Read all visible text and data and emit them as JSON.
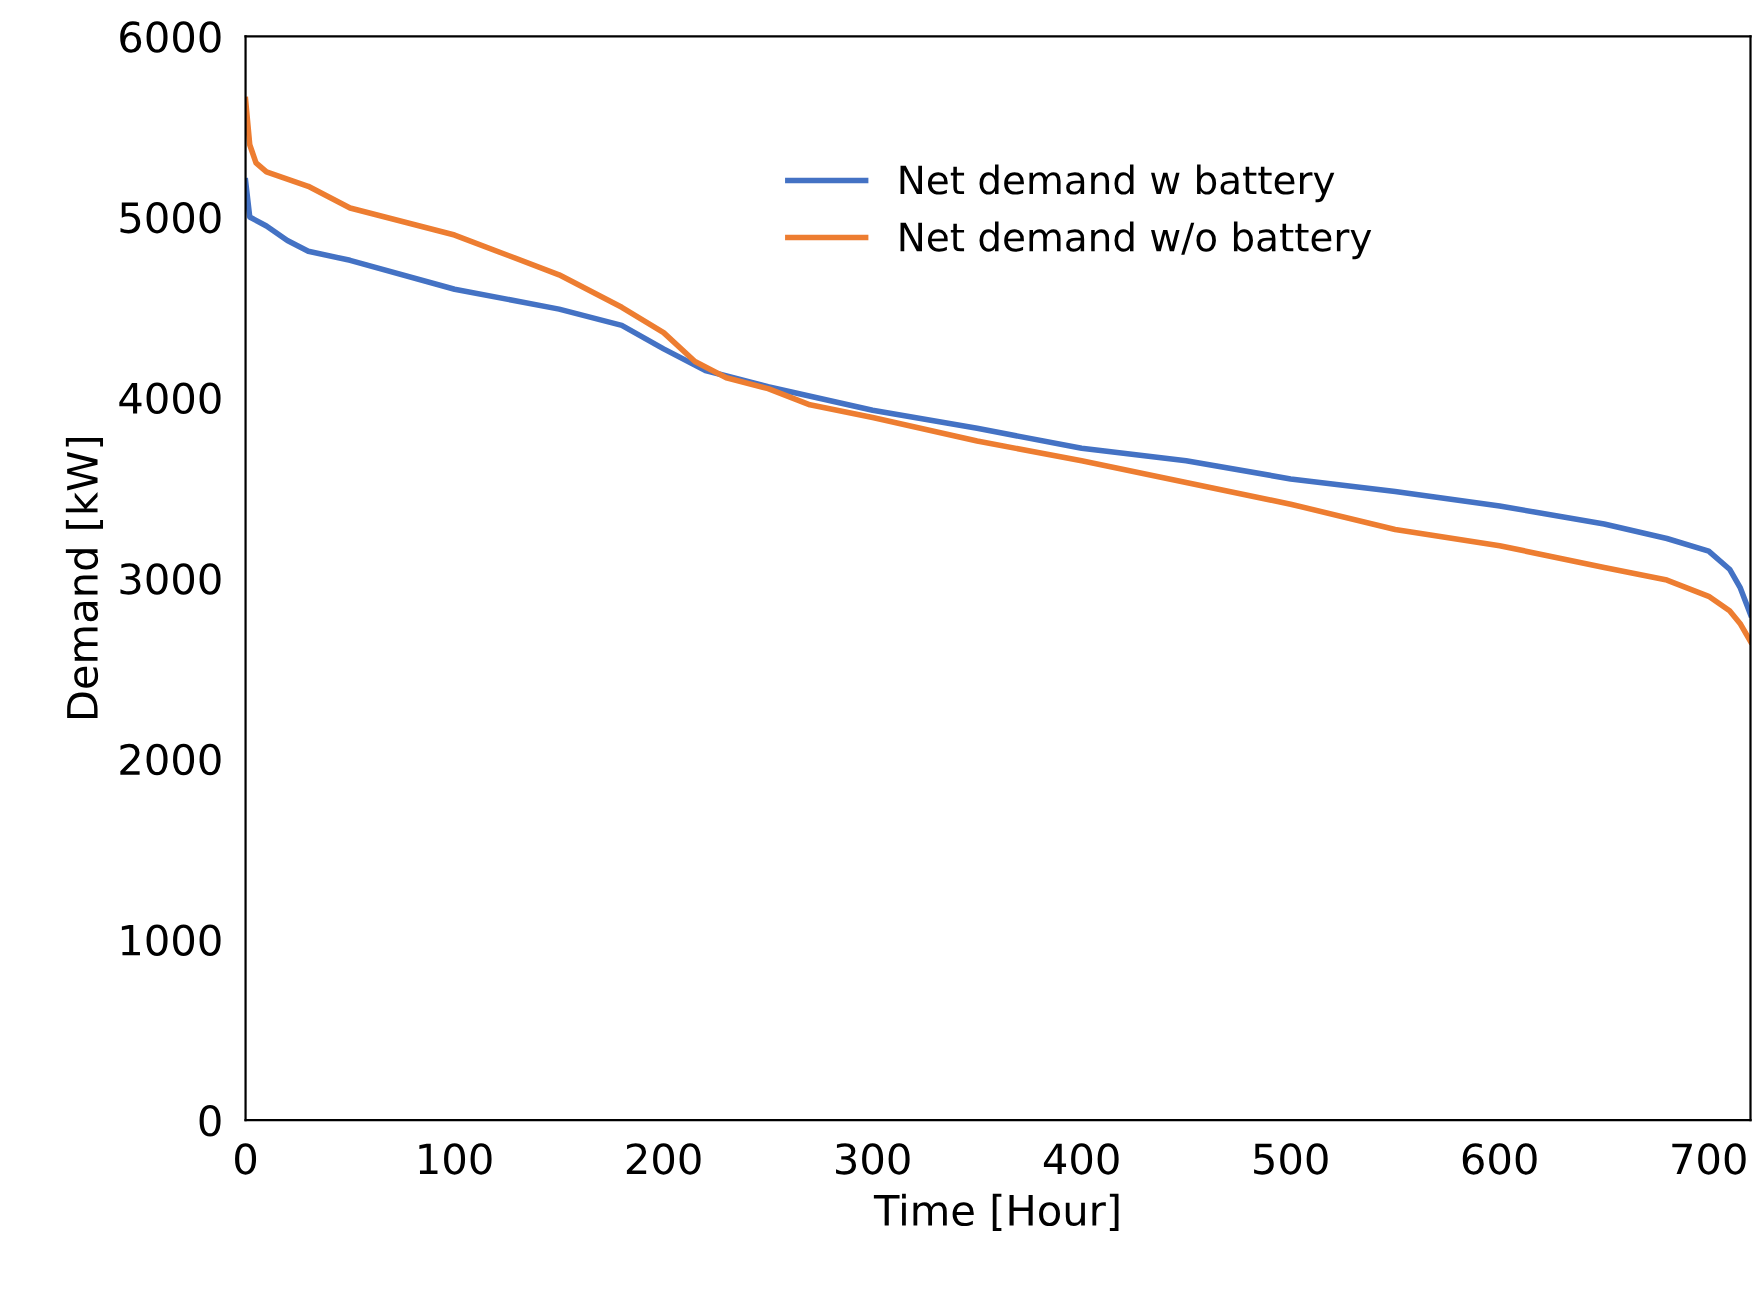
{
  "chart_data": {
    "type": "line",
    "xlabel": "Time [Hour]",
    "ylabel": "Demand [kW]",
    "xlim": [
      0,
      720
    ],
    "xticks": [
      0,
      100,
      200,
      300,
      400,
      500,
      600,
      700
    ],
    "ylim": [
      0,
      6000
    ],
    "yticks": [
      0,
      1000,
      2000,
      3000,
      4000,
      5000,
      6000
    ],
    "grid": false,
    "legend": "top right",
    "marker": "none",
    "line_style": "solid",
    "series": [
      {
        "name": "Net demand w battery",
        "color": "#4472c4",
        "x": [
          0,
          2,
          10,
          20,
          30,
          50,
          100,
          150,
          180,
          200,
          220,
          250,
          300,
          350,
          400,
          450,
          500,
          550,
          600,
          650,
          680,
          700,
          710,
          715,
          720
        ],
        "values": [
          5200,
          5000,
          4950,
          4870,
          4810,
          4760,
          4600,
          4490,
          4400,
          4270,
          4150,
          4060,
          3930,
          3830,
          3720,
          3650,
          3550,
          3480,
          3400,
          3300,
          3220,
          3150,
          3050,
          2950,
          2800
        ]
      },
      {
        "name": "Net demand w/o battery",
        "color": "#ed7d31",
        "x": [
          0,
          2,
          5,
          10,
          30,
          50,
          100,
          150,
          180,
          200,
          215,
          230,
          250,
          270,
          300,
          350,
          400,
          450,
          500,
          550,
          600,
          650,
          680,
          700,
          710,
          715,
          720
        ],
        "values": [
          5650,
          5400,
          5300,
          5250,
          5170,
          5050,
          4900,
          4680,
          4500,
          4360,
          4200,
          4110,
          4050,
          3960,
          3890,
          3760,
          3650,
          3530,
          3410,
          3270,
          3180,
          3060,
          2990,
          2900,
          2820,
          2750,
          2650
        ]
      }
    ]
  }
}
